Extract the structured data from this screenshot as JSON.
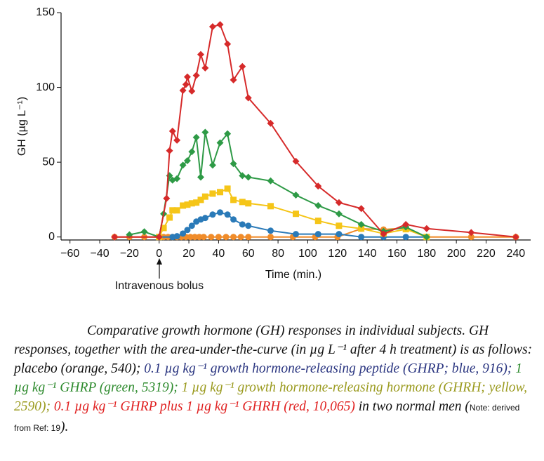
{
  "chart_data": {
    "type": "line",
    "y_label": "GH (µg L⁻¹)",
    "x_label": "Time (min.)",
    "annotation": "Intravenous bolus",
    "xlim": [
      -66,
      250
    ],
    "ylim": [
      -2,
      150
    ],
    "xticks": [
      {
        "value": -60,
        "label": "−60"
      },
      {
        "value": -40,
        "label": "−40"
      },
      {
        "value": -20,
        "label": "−20"
      },
      0,
      20,
      40,
      60,
      80,
      100,
      120,
      140,
      160,
      180,
      200,
      220,
      240
    ],
    "yticks": [
      0,
      50,
      100,
      150
    ],
    "series": [
      {
        "name": "placebo",
        "color": "#f08c2a",
        "marker": "circle",
        "x": [
          -30,
          -20,
          -10,
          0,
          3,
          6,
          9,
          12,
          15,
          18,
          21,
          24,
          27,
          30,
          35,
          40,
          45,
          50,
          55,
          60,
          75,
          90,
          105,
          120,
          136,
          151,
          166,
          180,
          210,
          240
        ],
        "values": [
          0,
          0,
          0,
          0,
          0,
          0,
          0,
          0,
          0,
          0,
          0,
          0,
          0,
          0,
          0,
          0,
          0,
          0,
          0,
          0,
          0,
          0,
          0,
          0,
          5.5,
          5,
          6,
          0,
          0,
          0
        ]
      },
      {
        "name": "GHRP 0.1",
        "color": "#2a7ab8",
        "marker": "circle",
        "x": [
          0,
          9,
          12,
          16,
          19,
          22,
          25,
          28,
          31,
          36,
          41,
          46,
          50,
          56,
          60,
          75,
          92,
          107,
          121,
          136,
          151,
          166,
          180
        ],
        "values": [
          0,
          0,
          0.5,
          2.3,
          4.7,
          7.5,
          10.3,
          11.7,
          12.7,
          15,
          16.4,
          15,
          11.7,
          8.4,
          7.5,
          4.2,
          1.9,
          1.9,
          1.9,
          0,
          0,
          0,
          0
        ]
      },
      {
        "name": "GHRH 1",
        "color": "#f5c518",
        "marker": "square",
        "x": [
          0,
          3,
          7,
          9,
          12,
          16,
          19,
          22,
          25,
          28,
          31,
          36,
          41,
          46,
          50,
          56,
          60,
          75,
          92,
          107,
          121,
          136,
          151,
          166,
          180
        ],
        "values": [
          0,
          6,
          13,
          17.8,
          17.8,
          21,
          21.6,
          22.5,
          23,
          24.8,
          27,
          29,
          30,
          32.3,
          24.8,
          23.4,
          22.5,
          20.6,
          15.5,
          10.8,
          7.5,
          5.6,
          2.3,
          5.2,
          0
        ]
      },
      {
        "name": "GHRP 1",
        "color": "#2e9a46",
        "marker": "diamond",
        "x": [
          -20,
          -10,
          0,
          3,
          7,
          9,
          12,
          16,
          19,
          22,
          25,
          28,
          31,
          36,
          41,
          46,
          50,
          56,
          60,
          75,
          92,
          107,
          121,
          136,
          151,
          166,
          180
        ],
        "values": [
          1.5,
          3.5,
          0,
          15.5,
          41,
          38,
          39,
          48,
          51,
          57,
          66.6,
          40,
          70,
          48,
          63,
          69,
          49,
          41,
          40,
          37.5,
          28,
          21,
          15.5,
          8.4,
          3.75,
          6.6,
          0
        ]
      },
      {
        "name": "GHRP plus GHRH",
        "color": "#d62a2a",
        "marker": "diamond",
        "x": [
          -30,
          0,
          5,
          7,
          9,
          12,
          16,
          18,
          19,
          22,
          25,
          28,
          31,
          36,
          41,
          46,
          50,
          56,
          60,
          75,
          92,
          107,
          121,
          136,
          151,
          166,
          180,
          210,
          240
        ],
        "values": [
          0,
          0,
          25.8,
          57.7,
          70.8,
          64.7,
          98,
          102,
          107,
          97.5,
          108,
          122,
          113,
          140.6,
          142,
          129,
          105,
          114,
          93,
          76,
          50.6,
          34,
          23,
          19,
          2,
          8.4,
          5.6,
          3,
          0
        ]
      }
    ]
  },
  "caption": {
    "segments": [
      {
        "text": "Comparative growth hormone (GH) responses in individual subjects. GH responses, together with the area-under-the-curve (in µg L⁻¹ after 4 h treatment) is as follows: placebo (orange, 540); ",
        "color": "#111111"
      },
      {
        "text": "0.1 µg kg⁻¹ growth hormone-releasing peptide (GHRP; blue, 916); ",
        "color": "#2a3580"
      },
      {
        "text": "1 µg kg⁻¹ GHRP (green, 5319); ",
        "color": "#2e8b2e"
      },
      {
        "text": "1 µg kg⁻¹ growth hormone-releasing hormone (GHRH; yellow, 2590); ",
        "color": "#9a9a1e"
      },
      {
        "text": "0.1 µg kg⁻¹ GHRP plus 1 µg kg⁻¹ GHRH (red, 10,065)",
        "color": "#e02020"
      },
      {
        "text": " in two normal men (",
        "color": "#111111"
      }
    ],
    "note": "Note: derived from Ref: 19",
    "closing": ")."
  }
}
